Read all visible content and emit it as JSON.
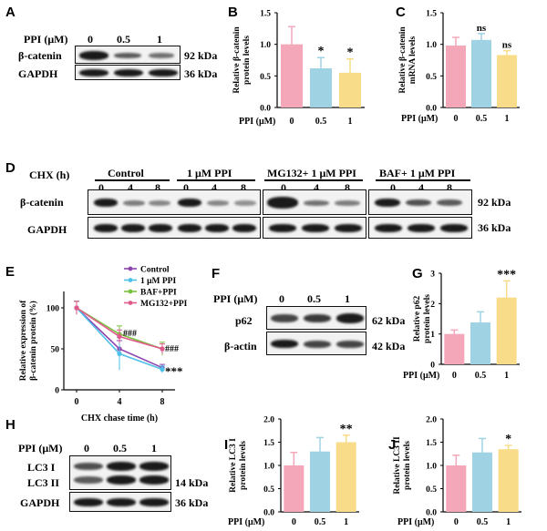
{
  "panels": {
    "A": {
      "letter": "A",
      "conc_label": "PPI (μM)",
      "concs": [
        "0",
        "0.5",
        "1"
      ],
      "rows": [
        "β-catenin",
        "GAPDH"
      ],
      "kda": [
        "92 kDa",
        "36 kDa"
      ],
      "intensity": {
        "β-catenin": [
          1.0,
          0.6,
          0.5
        ],
        "GAPDH": [
          1.0,
          1.0,
          1.0
        ]
      }
    },
    "B": {
      "letter": "B"
    },
    "C": {
      "letter": "C"
    },
    "D": {
      "letter": "D",
      "chx_label": "CHX (h)",
      "groups": [
        "Control",
        "1 μM PPI",
        "MG132+ 1 μM PPI",
        "BAF+ 1 μM PPI"
      ],
      "times": [
        "0",
        "4",
        "8"
      ],
      "rows": [
        "β-catenin",
        "GAPDH"
      ],
      "kda": [
        "92 kDa",
        "36 kDa"
      ]
    },
    "E": {
      "letter": "E"
    },
    "F": {
      "letter": "F",
      "conc_label": "PPI (μM)",
      "concs": [
        "0",
        "0.5",
        "1"
      ],
      "rows": [
        "p62",
        "β-actin"
      ],
      "kda": [
        "62 kDa",
        "42 kDa"
      ]
    },
    "G": {
      "letter": "G"
    },
    "H": {
      "letter": "H",
      "conc_label": "PPI (μM)",
      "concs": [
        "0",
        "0.5",
        "1"
      ],
      "rows": [
        "LC3 I",
        "LC3 II",
        "GAPDH"
      ],
      "kda": [
        "14 kDa",
        "36 kDa"
      ]
    },
    "I": {
      "letter": "I"
    },
    "J": {
      "letter": "J"
    }
  },
  "chart_data": [
    {
      "panel": "B",
      "type": "bar",
      "categories": [
        "0",
        "0.5",
        "1"
      ],
      "values": [
        1.0,
        0.62,
        0.55
      ],
      "errors": [
        0.28,
        0.17,
        0.22
      ],
      "significance": [
        "",
        "*",
        "*"
      ],
      "xlabel": "PPI (μM)",
      "ylabel": "Relative β-catenin protein levels",
      "ylim": [
        0,
        1.5
      ],
      "yticks": [
        "0.0",
        "0.5",
        "1.0",
        "1.5"
      ],
      "colors": [
        "#f4a7b9",
        "#9fd3e3",
        "#f9dc8a"
      ]
    },
    {
      "panel": "C",
      "type": "bar",
      "categories": [
        "0",
        "0.5",
        "1"
      ],
      "values": [
        0.98,
        1.07,
        0.83
      ],
      "errors": [
        0.13,
        0.1,
        0.07
      ],
      "significance": [
        "",
        "ns",
        "ns"
      ],
      "xlabel": "PPI (μM)",
      "ylabel": "Relative β-catenin mRNA levels",
      "ylim": [
        0,
        1.5
      ],
      "yticks": [
        "0.0",
        "0.5",
        "1.0",
        "1.5"
      ],
      "colors": [
        "#f4a7b9",
        "#9fd3e3",
        "#f9dc8a"
      ]
    },
    {
      "panel": "E",
      "type": "line",
      "x": [
        0,
        4,
        8
      ],
      "xlabel": "CHX chase time (h)",
      "ylabel": "Relative expression of β-catenin protein (%)",
      "ylim": [
        0,
        120
      ],
      "yticks": [
        "0",
        "50",
        "100"
      ],
      "series": [
        {
          "name": "Control",
          "values": [
            100,
            50,
            27
          ],
          "errors": [
            8,
            10,
            4
          ],
          "color": "#8e44ad"
        },
        {
          "name": "1 μM PPI",
          "values": [
            100,
            44,
            25
          ],
          "errors": [
            8,
            20,
            4
          ],
          "color": "#4fc1e8"
        },
        {
          "name": "BAF+PPI",
          "values": [
            100,
            68,
            50
          ],
          "errors": [
            8,
            10,
            8
          ],
          "color": "#7cc142"
        },
        {
          "name": "MG132+PPI",
          "values": [
            100,
            65,
            50
          ],
          "errors": [
            8,
            8,
            6
          ],
          "color": "#e05a8c"
        }
      ],
      "annotations": [
        "###",
        "###",
        "***"
      ]
    },
    {
      "panel": "G",
      "type": "bar",
      "categories": [
        "0",
        "0.5",
        "1"
      ],
      "values": [
        1.0,
        1.38,
        2.2
      ],
      "errors": [
        0.13,
        0.35,
        0.55
      ],
      "significance": [
        "",
        "",
        "***"
      ],
      "xlabel": "PPI (μM)",
      "ylabel": "Relative p62 protein levels",
      "ylim": [
        0,
        3
      ],
      "yticks": [
        "0",
        "1",
        "2",
        "3"
      ],
      "colors": [
        "#f4a7b9",
        "#9fd3e3",
        "#f9dc8a"
      ]
    },
    {
      "panel": "I",
      "type": "bar",
      "categories": [
        "0",
        "0.5",
        "1"
      ],
      "values": [
        1.0,
        1.3,
        1.5
      ],
      "errors": [
        0.28,
        0.3,
        0.15
      ],
      "significance": [
        "",
        "",
        "**"
      ],
      "xlabel": "PPI (μM)",
      "ylabel": "Relative LC3 I protein levels",
      "ylim": [
        0,
        2.0
      ],
      "yticks": [
        "0.0",
        "0.5",
        "1.0",
        "1.5",
        "2.0"
      ],
      "colors": [
        "#f4a7b9",
        "#9fd3e3",
        "#f9dc8a"
      ]
    },
    {
      "panel": "J",
      "type": "bar",
      "categories": [
        "0",
        "0.5",
        "1"
      ],
      "values": [
        1.0,
        1.28,
        1.35
      ],
      "errors": [
        0.22,
        0.3,
        0.08
      ],
      "significance": [
        "",
        "",
        "*"
      ],
      "xlabel": "PPI (μM)",
      "ylabel": "Relative LC3 II protein levels",
      "ylim": [
        0,
        2.0
      ],
      "yticks": [
        "0.0",
        "0.5",
        "1.0",
        "1.5",
        "2.0"
      ],
      "colors": [
        "#f4a7b9",
        "#9fd3e3",
        "#f9dc8a"
      ]
    }
  ]
}
